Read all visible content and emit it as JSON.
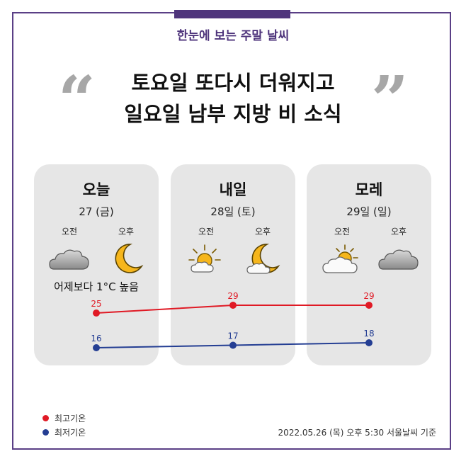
{
  "subtitle": "한눈에 보는 주말 날씨",
  "headline": {
    "line1": "토요일 또다시 더워지고",
    "line2": "일요일 남부 지방 비 소식"
  },
  "quotes": {
    "open": "“",
    "close": "”"
  },
  "cards": [
    {
      "day": "오늘",
      "date": "27 (금)",
      "am_label": "오전",
      "pm_label": "오후",
      "am_icon": "cloudy-icon",
      "pm_icon": "crescent-moon-icon",
      "note": "어제보다 1°C 높음"
    },
    {
      "day": "내일",
      "date": "28일 (토)",
      "am_label": "오전",
      "pm_label": "오후",
      "am_icon": "sunny-icon",
      "pm_icon": "crescent-moon-icon",
      "note": ""
    },
    {
      "day": "모레",
      "date": "29일 (일)",
      "am_label": "오전",
      "pm_label": "오후",
      "am_icon": "partly-cloudy-icon",
      "pm_icon": "cloudy-icon",
      "note": ""
    }
  ],
  "chart_data": {
    "type": "line",
    "categories": [
      "오늘",
      "내일",
      "모레"
    ],
    "series": [
      {
        "name": "최고기온",
        "values": [
          25,
          29,
          29
        ],
        "color": "#e01a25"
      },
      {
        "name": "최저기온",
        "values": [
          16,
          17,
          18
        ],
        "color": "#243e93"
      }
    ],
    "unit": "°C"
  },
  "legend": {
    "max_label": "최고기온",
    "min_label": "최저기온"
  },
  "footnote": "2022.05.26 (목) 오후 5:30 서울날씨 기준",
  "colors": {
    "accent": "#4f357c",
    "card": "#e6e6e6",
    "high": "#e01a25",
    "low": "#243e93"
  }
}
